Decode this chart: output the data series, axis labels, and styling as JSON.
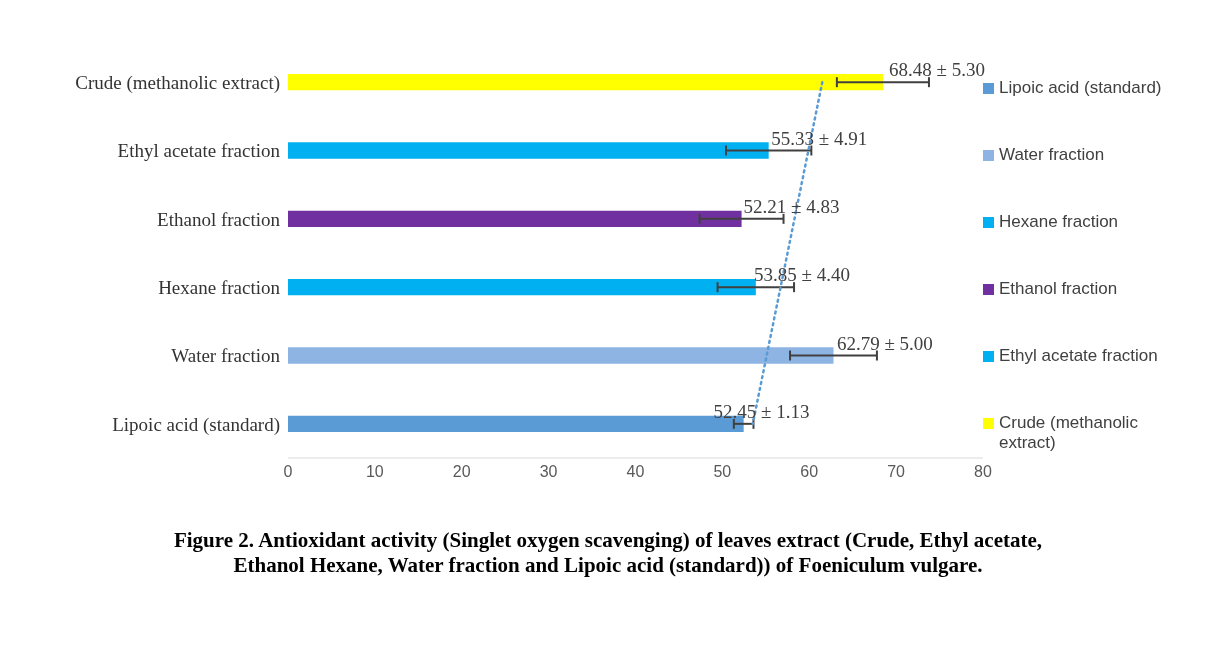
{
  "chart_data": {
    "type": "bar",
    "orientation": "horizontal",
    "stacked": true,
    "categories": [
      "Crude (methanolic extract)",
      "Ethyl acetate fraction",
      "Ethanol fraction",
      "Hexane fraction",
      "Water fraction",
      "Lipoic acid (standard)"
    ],
    "series": [
      {
        "type": "bar",
        "name": "Crude (methanolic extract)",
        "color": "#ffff00",
        "values": [
          68.48,
          null,
          null,
          null,
          null,
          null
        ],
        "errors": [
          5.3,
          null,
          null,
          null,
          null,
          null
        ],
        "value_labels": [
          "68.48 ± 5.30",
          null,
          null,
          null,
          null,
          null
        ]
      },
      {
        "type": "bar",
        "name": "Ethyl acetate fraction",
        "color": "#00b0f0",
        "values": [
          null,
          55.33,
          null,
          null,
          null,
          null
        ],
        "errors": [
          null,
          4.91,
          null,
          null,
          null,
          null
        ],
        "value_labels": [
          null,
          "55.33 ± 4.91",
          null,
          null,
          null,
          null
        ]
      },
      {
        "type": "bar",
        "name": "Ethanol fraction",
        "color": "#7030a0",
        "values": [
          null,
          null,
          52.21,
          null,
          null,
          null
        ],
        "errors": [
          null,
          null,
          4.83,
          null,
          null,
          null
        ],
        "value_labels": [
          null,
          null,
          "52.21 ± 4.83",
          null,
          null,
          null
        ]
      },
      {
        "type": "bar",
        "name": "Hexane fraction",
        "color": "#00b0f0",
        "values": [
          null,
          null,
          null,
          53.85,
          null,
          null
        ],
        "errors": [
          null,
          null,
          null,
          4.4,
          null,
          null
        ],
        "value_labels": [
          null,
          null,
          null,
          "53.85 ± 4.40",
          null,
          null
        ]
      },
      {
        "type": "bar",
        "name": "Water fraction",
        "color": "#8eb4e3",
        "values": [
          null,
          null,
          null,
          null,
          62.79,
          null
        ],
        "errors": [
          null,
          null,
          null,
          null,
          5.0,
          null
        ],
        "value_labels": [
          null,
          null,
          null,
          null,
          "62.79 ± 5.00",
          null
        ]
      },
      {
        "type": "bar",
        "name": "Lipoic acid (standard)",
        "color": "#5b9bd5",
        "values": [
          null,
          null,
          null,
          null,
          null,
          52.45
        ],
        "errors": [
          null,
          null,
          null,
          null,
          null,
          1.13
        ],
        "value_labels": [
          null,
          null,
          null,
          null,
          null,
          "52.45 ± 1.13"
        ]
      },
      {
        "type": "line",
        "color": "#5b9bd5",
        "line_style": "dotted",
        "values": [
          61.5,
          59.9,
          58.3,
          56.7,
          55.1,
          53.5
        ]
      }
    ],
    "xlim": [
      0,
      80
    ],
    "xticks": [
      0,
      10,
      20,
      30,
      40,
      50,
      60,
      70,
      80
    ],
    "legend": "right",
    "grid": false,
    "annotations": [
      "Figure 2. Antioxidant activity (Singlet oxygen scavenging) of leaves extract (Crude, Ethyl acetate, Ethanol Hexane, Water fraction and Lipoic acid (standard)) of Foeniculum vulgare."
    ]
  }
}
